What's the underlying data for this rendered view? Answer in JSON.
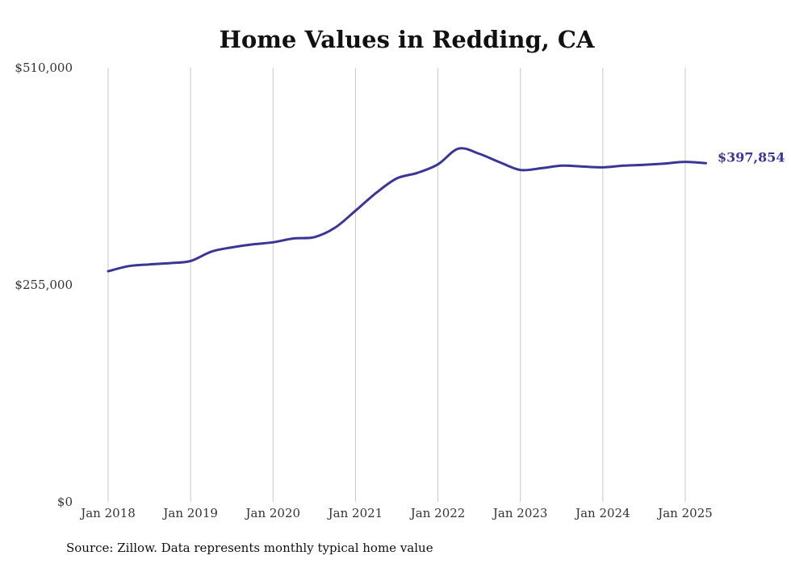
{
  "chart_data": {
    "type": "line",
    "title": "Home Values in Redding, CA",
    "xlabel": "",
    "ylabel": "",
    "ylim": [
      0,
      510000
    ],
    "yticks": [
      {
        "value": 0,
        "label": "$0"
      },
      {
        "value": 255000,
        "label": "$255,000"
      },
      {
        "value": 510000,
        "label": "$510,000"
      }
    ],
    "xlim": [
      2018.0,
      2025.25
    ],
    "xticks": [
      {
        "value": 2018,
        "label": "Jan 2018"
      },
      {
        "value": 2019,
        "label": "Jan 2019"
      },
      {
        "value": 2020,
        "label": "Jan 2020"
      },
      {
        "value": 2021,
        "label": "Jan 2021"
      },
      {
        "value": 2022,
        "label": "Jan 2022"
      },
      {
        "value": 2023,
        "label": "Jan 2023"
      },
      {
        "value": 2024,
        "label": "Jan 2024"
      },
      {
        "value": 2025,
        "label": "Jan 2025"
      }
    ],
    "grid": {
      "vertical": true,
      "horizontal": false
    },
    "line_color": "#3b3596",
    "end_label": "$397,854",
    "source": "Source: Zillow. Data represents monthly typical home value",
    "x": [
      2018.0,
      2018.25,
      2018.5,
      2018.75,
      2019.0,
      2019.25,
      2019.5,
      2019.75,
      2020.0,
      2020.25,
      2020.5,
      2020.75,
      2021.0,
      2021.25,
      2021.5,
      2021.75,
      2022.0,
      2022.25,
      2022.5,
      2022.75,
      2023.0,
      2023.25,
      2023.5,
      2023.75,
      2024.0,
      2024.25,
      2024.5,
      2024.75,
      2025.0,
      2025.25
    ],
    "values": [
      271000,
      277000,
      279000,
      280500,
      283000,
      294000,
      299000,
      302500,
      305000,
      309500,
      311000,
      322000,
      342000,
      363000,
      380000,
      386500,
      396500,
      415000,
      409000,
      399000,
      390000,
      392000,
      395000,
      394000,
      393000,
      395000,
      396000,
      397500,
      399500,
      397854
    ]
  }
}
